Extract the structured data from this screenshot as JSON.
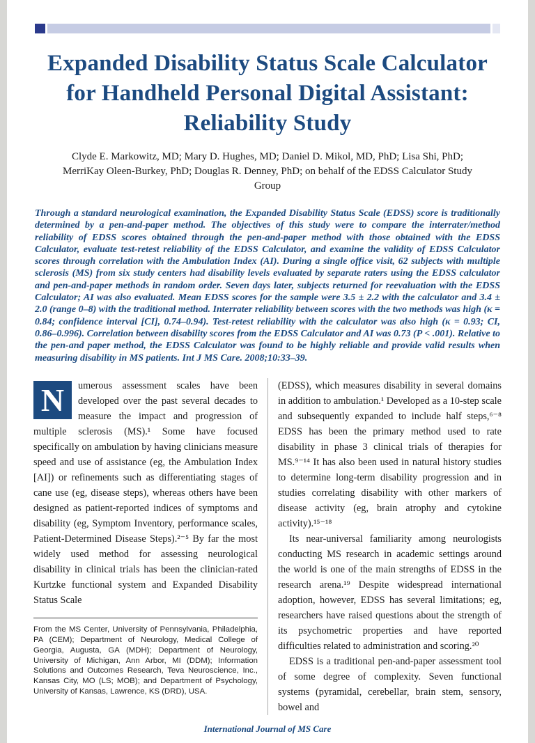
{
  "article": {
    "title": "Expanded Disability Status Scale Calculator for Handheld Personal Digital Assistant: Reliability Study",
    "authors": "Clyde E. Markowitz, MD; Mary D. Hughes, MD; Daniel D. Mikol, MD, PhD; Lisa Shi, PhD; MerriKay Oleen-Burkey, PhD; Douglas R. Denney, PhD; on behalf of the EDSS Calculator Study Group",
    "abstract": "Through a standard neurological examination, the Expanded Disability Status Scale (EDSS) score is traditionally determined by a pen-and-paper method. The objectives of this study were to compare the interrater/method reliability of EDSS scores obtained through the pen-and-paper method with those obtained with the EDSS Calculator, evaluate test-retest reliability of the EDSS Calculator, and examine the validity of EDSS Calculator scores through correlation with the Ambulation Index (AI). During a single office visit, 62 subjects with multiple sclerosis (MS) from six study centers had disability levels evaluated by separate raters using the EDSS calculator and pen-and-paper methods in random order. Seven days later, subjects returned for reevaluation with the EDSS Calculator; AI was also evaluated. Mean EDSS scores for the sample were 3.5 ± 2.2 with the calculator and 3.4 ± 2.0 (range 0–8) with the traditional method. Interrater reliability between scores with the two methods was high (κ = 0.84; confidence interval [CI], 0.74–0.94). Test-retest reliability with the calculator was also high (κ = 0.93; CI, 0.86–0.996). Correlation between disability scores from the EDSS Calculator and AI was 0.73 (P < .001). Relative to the pen-and paper method, the EDSS Calculator was found to be highly reliable and provide valid results when measuring disability in MS patients. Int J MS Care. 2008;10:33–39.",
    "drop_cap": "N",
    "intro_paragraph": "umerous assessment scales have been developed over the past several decades to measure the impact and progression of multiple sclerosis (MS).¹ Some have focused specifically on ambulation by having clinicians measure speed and use of assistance (eg, the Ambulation Index [AI]) or refinements such as differentiating stages of cane use (eg, disease steps), whereas others have been designed as patient-reported indices of symptoms and disability (eg, Symptom Inventory, performance scales, Patient-Determined Disease Steps).²⁻⁵ By far the most widely used method for assessing neurological disability in clinical trials has been the clinician-rated Kurtzke functional system and Expanded Disability Status Scale",
    "affiliations": "From the MS Center, University of Pennsylvania, Philadelphia, PA (CEM); Department of Neurology, Medical College of Georgia, Augusta, GA (MDH); Department of Neurology, University of Michigan, Ann Arbor, MI (DDM); Information Solutions and Outcomes Research, Teva Neuroscience, Inc., Kansas City, MO (LS; MOB); and Department of Psychology, University of Kansas, Lawrence, KS (DRD), USA.",
    "right_paragraphs": {
      "0": "(EDSS), which measures disability in several domains in addition to ambulation.¹ Developed as a 10-step scale and subsequently expanded to include half steps,⁶⁻⁸ EDSS has been the primary method used to rate disability in phase 3 clinical trials of therapies for MS.⁹⁻¹⁴ It has also been used in natural history studies to determine long-term disability progression and in studies correlating disability with other markers of disease activity (eg, brain atrophy and cytokine activity).¹⁵⁻¹⁸",
      "1": "Its near-universal familiarity among neurologists conducting MS research in academic settings around the world is one of the main strengths of EDSS in the research arena.¹⁹ Despite widespread international adoption, however, EDSS has several limitations; eg, researchers have raised questions about the strength of its psychometric properties and have reported difficulties related to administration and scoring.²⁰",
      "2": "EDSS is a traditional pen-and-paper assessment tool of some degree of complexity. Seven functional systems (pyramidal, cerebellar, brain stem, sensory, bowel and"
    },
    "journal_name": "International Journal of MS Care"
  },
  "colors": {
    "accent_navy": "#1c4a80",
    "header_bar_light": "#c6cce4",
    "header_bar_dark": "#2b3a8c",
    "body_text": "#1b1b1b"
  }
}
